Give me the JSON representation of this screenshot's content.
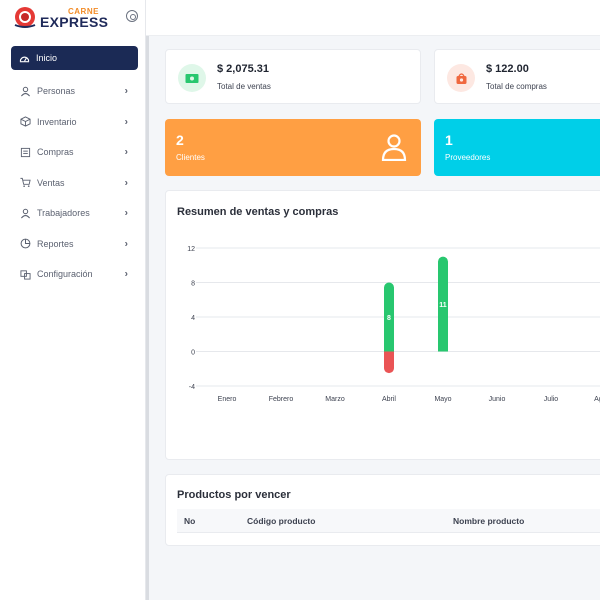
{
  "brand": {
    "small": "CARNE",
    "big": "EXPRESS"
  },
  "nav": [
    {
      "label": "Inicio",
      "icon": "dashboard-icon",
      "active": true
    },
    {
      "label": "Personas",
      "icon": "user-icon"
    },
    {
      "label": "Inventario",
      "icon": "box-icon"
    },
    {
      "label": "Compras",
      "icon": "receipt-icon"
    },
    {
      "label": "Ventas",
      "icon": "cart-icon"
    },
    {
      "label": "Trabajadores",
      "icon": "user-icon"
    },
    {
      "label": "Reportes",
      "icon": "pie-chart-icon"
    },
    {
      "label": "Configuración",
      "icon": "settings-icon"
    }
  ],
  "stats": {
    "sales": {
      "amount": "$ 2,075.31",
      "label": "Total de ventas",
      "color": "#2ecc71"
    },
    "purchases": {
      "amount": "$ 122.00",
      "label": "Total de compras",
      "color": "#f0683f"
    }
  },
  "counts": {
    "clients": {
      "value": "2",
      "label": "Clientes",
      "color": "#ff9f43"
    },
    "providers": {
      "value": "1",
      "label": "Proveedores",
      "color": "#00cfe8"
    }
  },
  "chart_panel": {
    "title": "Resumen de ventas y compras"
  },
  "chart_data": {
    "type": "bar",
    "categories": [
      "Enero",
      "Febrero",
      "Marzo",
      "Abril",
      "Mayo",
      "Junio",
      "Julio",
      "Agosto"
    ],
    "series": [
      {
        "values": [
          0,
          0,
          0,
          8,
          11,
          0,
          0,
          0
        ],
        "color": "#28c76f"
      },
      {
        "values": [
          0,
          0,
          0,
          -2.5,
          0,
          0,
          0,
          0
        ],
        "color": "#ea5455"
      }
    ],
    "data_labels": [
      "",
      "",
      "",
      "8",
      "11",
      "",
      "",
      ""
    ],
    "yticks": [
      12,
      8,
      4,
      0,
      -4
    ],
    "ylim": [
      -4,
      12
    ],
    "grid": true
  },
  "products_panel": {
    "title": "Productos por vencer",
    "columns": [
      "No",
      "Código producto",
      "Nombre producto"
    ]
  }
}
